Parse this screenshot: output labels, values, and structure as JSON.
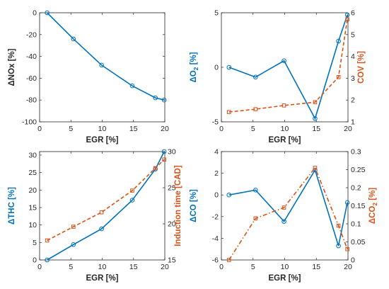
{
  "colors": {
    "blue": "#0072BD",
    "orange": "#D95319",
    "axis": "#262626"
  },
  "chart_data": [
    {
      "type": "line",
      "xlabel": "EGR [%]",
      "ylabel": "ΔNOx [%]",
      "xlim": [
        0,
        20
      ],
      "ylim": [
        -100,
        0
      ],
      "xticks": [
        0,
        5,
        10,
        15,
        20
      ],
      "yticks": [
        -100,
        -80,
        -60,
        -40,
        -20,
        0
      ],
      "x": [
        1.2,
        5.4,
        9.9,
        14.8,
        18.5,
        19.9
      ],
      "series": [
        {
          "axis": "left",
          "color": "blue",
          "style": "solid",
          "marker": "circle",
          "values": [
            0,
            -24,
            -48,
            -67,
            -78,
            -80
          ]
        }
      ]
    },
    {
      "type": "line",
      "xlabel": "EGR [%]",
      "ylabel": "ΔO2 [%]",
      "ylabel_right": "COV [%]",
      "xlim": [
        0,
        20
      ],
      "ylim": [
        -5,
        5
      ],
      "ylim_right": [
        1,
        6
      ],
      "xticks": [
        0,
        5,
        10,
        15,
        20
      ],
      "yticks": [
        -5,
        0,
        5
      ],
      "yticks_right": [
        1,
        2,
        3,
        4,
        5,
        6
      ],
      "x": [
        1.2,
        5.4,
        9.9,
        14.8,
        18.5,
        19.9
      ],
      "series": [
        {
          "axis": "left",
          "color": "blue",
          "style": "solid",
          "marker": "circle",
          "values": [
            0,
            -0.9,
            0.6,
            -4.7,
            2.4,
            4.8
          ]
        },
        {
          "axis": "right",
          "color": "orange",
          "style": "dashed",
          "marker": "square",
          "values": [
            1.45,
            1.58,
            1.75,
            1.9,
            3.05,
            5.7
          ]
        }
      ]
    },
    {
      "type": "line",
      "xlabel": "EGR [%]",
      "ylabel": "ΔTHC [%]",
      "ylabel_right": "Induction time [CAD]",
      "xlim": [
        0,
        20
      ],
      "ylim": [
        0,
        31
      ],
      "ylim_right": [
        15,
        30
      ],
      "xticks": [
        0,
        5,
        10,
        15,
        20
      ],
      "yticks": [
        0,
        5,
        10,
        15,
        20,
        25,
        30
      ],
      "yticks_right": [
        15,
        20,
        25,
        30
      ],
      "x": [
        1.2,
        5.4,
        9.9,
        14.8,
        18.5,
        19.9
      ],
      "series": [
        {
          "axis": "left",
          "color": "blue",
          "style": "solid",
          "marker": "circle",
          "values": [
            0,
            4.4,
            8.9,
            17.1,
            26.0,
            31.0
          ]
        },
        {
          "axis": "right",
          "color": "orange",
          "style": "dashed",
          "marker": "square",
          "values": [
            17.7,
            19.6,
            21.6,
            24.6,
            27.7,
            28.9
          ]
        }
      ]
    },
    {
      "type": "line",
      "xlabel": "EGR [%]",
      "ylabel": "ΔCO [%]",
      "ylabel_right": "ΔCO2 [%]",
      "xlim": [
        0,
        20
      ],
      "ylim": [
        -6,
        4
      ],
      "ylim_right": [
        0,
        0.3
      ],
      "xticks": [
        0,
        5,
        10,
        15,
        20
      ],
      "yticks": [
        -6,
        -4,
        -2,
        0,
        2,
        4
      ],
      "yticks_right": [
        0,
        0.05,
        0.1,
        0.15,
        0.2,
        0.25,
        0.3
      ],
      "x": [
        1.2,
        5.4,
        9.9,
        14.8,
        18.5,
        19.9
      ],
      "series": [
        {
          "axis": "left",
          "color": "blue",
          "style": "solid",
          "marker": "circle",
          "values": [
            0,
            0.45,
            -2.45,
            2.3,
            -4.7,
            -0.7
          ]
        },
        {
          "axis": "right",
          "color": "orange",
          "style": "dashdot",
          "marker": "square",
          "values": [
            0.0,
            0.115,
            0.145,
            0.255,
            0.095,
            0.03
          ]
        }
      ]
    }
  ]
}
